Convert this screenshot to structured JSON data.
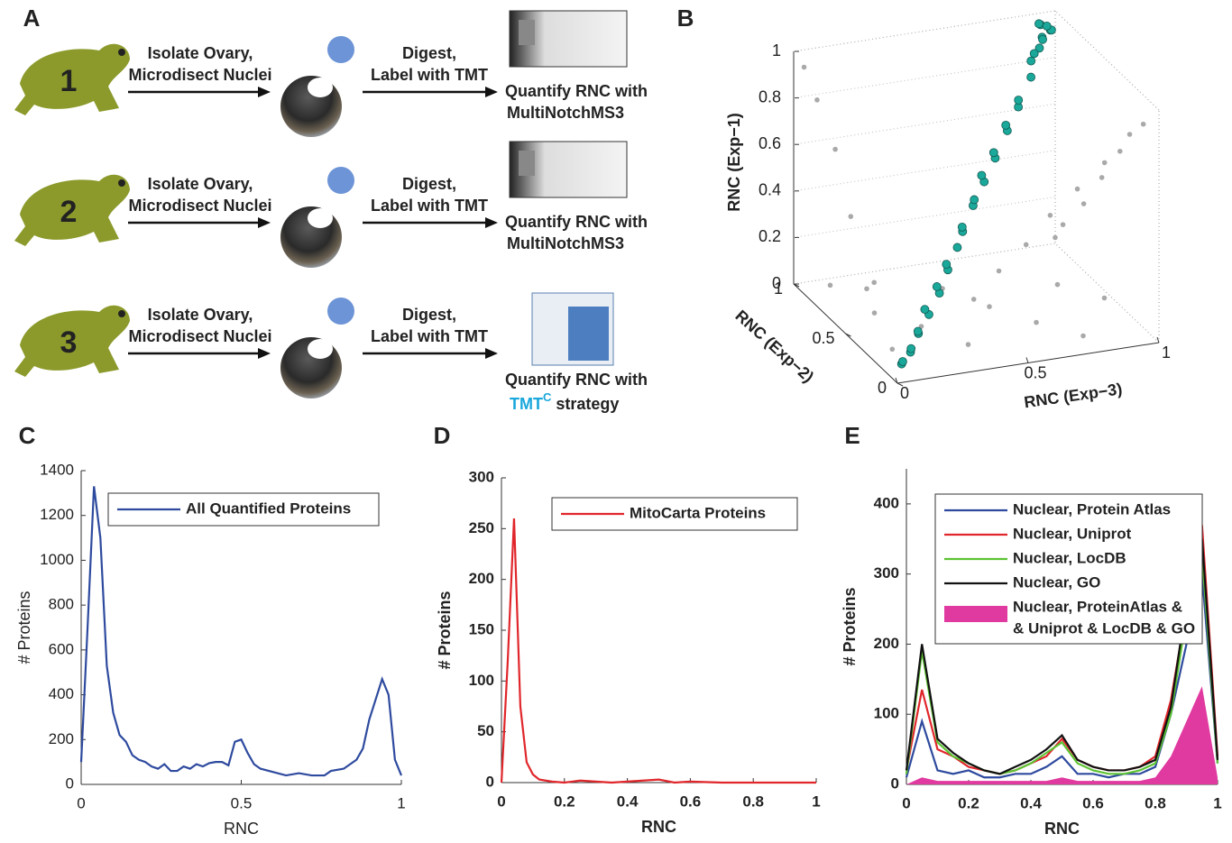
{
  "panel_labels": [
    "A",
    "B",
    "C",
    "D",
    "E"
  ],
  "workflow": {
    "rows": [
      {
        "number": "1",
        "step1": [
          "Isolate Ovary,",
          "Microdisect Nuclei"
        ],
        "step2": [
          "Digest,",
          "Label with TMT"
        ],
        "step3": "Quantify RNC with",
        "method": "MultiNotchMS3"
      },
      {
        "number": "2",
        "step1": [
          "Isolate Ovary,",
          "Microdisect Nuclei"
        ],
        "step2": [
          "Digest,",
          "Label with TMT"
        ],
        "step3": "Quantify RNC with",
        "method": "MultiNotchMS3"
      },
      {
        "number": "3",
        "step1": [
          "Isolate Ovary,",
          "Microdisect Nuclei"
        ],
        "step2": [
          "Digest,",
          "Label with TMT"
        ],
        "step3": "Quantify RNC with",
        "method": "TMT",
        "method_sup": "C",
        "method_suffix": "strategy"
      }
    ]
  },
  "chart_data": [
    {
      "type": "scatter3d",
      "xlabel": "RNC (Exp−3)",
      "ylabel": "RNC (Exp−2)",
      "zlabel": "RNC (Exp−1)",
      "xlim": [
        0,
        1
      ],
      "ylim": [
        0,
        1
      ],
      "zlim": [
        0,
        1
      ],
      "xticks": [
        0,
        0.5,
        1
      ],
      "yticks": [
        0,
        0.5,
        1
      ],
      "zticks": [
        0,
        0.2,
        0.4,
        0.6,
        0.8,
        1
      ],
      "series": [
        {
          "color": "#a9a9ab",
          "x": [
            0.02,
            0.03,
            0.02,
            0.04,
            0.03,
            0.02,
            0.98,
            0.97,
            0.98,
            0.99,
            0.97,
            0.98,
            0.3,
            0.4,
            0.5,
            0.6,
            0.7,
            0.8,
            0.9,
            0.1,
            0.2,
            0.15,
            0.25,
            0.35,
            0.45,
            0.55,
            0.65,
            0.75,
            0.85,
            0.95
          ],
          "y": [
            0.1,
            0.3,
            0.5,
            0.7,
            0.85,
            0.95,
            0.1,
            0.3,
            0.5,
            0.7,
            0.85,
            0.95,
            0.02,
            0.03,
            0.02,
            0.04,
            0.03,
            0.02,
            0.03,
            0.9,
            0.8,
            0.6,
            0.4,
            0.2,
            0.7,
            0.5,
            0.3,
            0.1,
            0.6,
            0.4
          ],
          "z": [
            0.1,
            0.3,
            0.5,
            0.7,
            0.85,
            0.95,
            0.9,
            0.7,
            0.5,
            0.3,
            0.15,
            0.05,
            0.3,
            0.4,
            0.5,
            0.6,
            0.7,
            0.8,
            0.9,
            0.02,
            0.03,
            0.02,
            0.03,
            0.02,
            0.03,
            0.02,
            0.02,
            0.03,
            0.02,
            0.03
          ]
        },
        {
          "color": "#1aa89a",
          "x": [
            0.04,
            0.07,
            0.1,
            0.06,
            0.12,
            0.15,
            0.18,
            0.2,
            0.24,
            0.27,
            0.3,
            0.33,
            0.36,
            0.4,
            0.43,
            0.46,
            0.5,
            0.53,
            0.56,
            0.6,
            0.63,
            0.67,
            0.7,
            0.74,
            0.78,
            0.82,
            0.86,
            0.9,
            0.93,
            0.95,
            0.97,
            0.92,
            0.88,
            0.96,
            0.91,
            0.94
          ],
          "y": [
            0.06,
            0.05,
            0.12,
            0.1,
            0.1,
            0.18,
            0.15,
            0.24,
            0.2,
            0.3,
            0.27,
            0.36,
            0.33,
            0.38,
            0.46,
            0.43,
            0.52,
            0.5,
            0.6,
            0.57,
            0.66,
            0.63,
            0.72,
            0.7,
            0.8,
            0.78,
            0.88,
            0.9,
            0.95,
            0.92,
            0.96,
            0.94,
            0.9,
            0.98,
            0.93,
            0.97
          ],
          "z": [
            0.05,
            0.1,
            0.08,
            0.04,
            0.15,
            0.12,
            0.2,
            0.18,
            0.26,
            0.24,
            0.32,
            0.3,
            0.38,
            0.42,
            0.4,
            0.5,
            0.48,
            0.56,
            0.54,
            0.62,
            0.6,
            0.7,
            0.68,
            0.76,
            0.74,
            0.84,
            0.86,
            0.9,
            0.92,
            0.96,
            0.94,
            0.98,
            0.88,
            0.95,
            0.99,
            0.9
          ]
        }
      ]
    },
    {
      "type": "line",
      "xlabel": "RNC",
      "ylabel": "# Proteins",
      "xlim": [
        0,
        1
      ],
      "ylim": [
        0,
        1400
      ],
      "xticks": [
        0,
        0.5,
        1
      ],
      "yticks": [
        0,
        200,
        400,
        600,
        800,
        1000,
        1200,
        1400
      ],
      "x": [
        0,
        0.02,
        0.04,
        0.06,
        0.08,
        0.1,
        0.12,
        0.14,
        0.16,
        0.18,
        0.2,
        0.22,
        0.24,
        0.26,
        0.28,
        0.3,
        0.32,
        0.34,
        0.36,
        0.38,
        0.4,
        0.42,
        0.44,
        0.46,
        0.48,
        0.5,
        0.52,
        0.54,
        0.56,
        0.6,
        0.64,
        0.68,
        0.72,
        0.76,
        0.78,
        0.82,
        0.86,
        0.88,
        0.9,
        0.92,
        0.94,
        0.96,
        0.98,
        1
      ],
      "series": [
        {
          "name": "All Quantified Proteins",
          "color": "#2e4a9e",
          "values": [
            100,
            700,
            1330,
            1100,
            530,
            320,
            220,
            190,
            130,
            110,
            100,
            80,
            70,
            90,
            60,
            60,
            80,
            70,
            90,
            80,
            95,
            100,
            100,
            85,
            190,
            200,
            140,
            90,
            70,
            55,
            40,
            50,
            40,
            40,
            60,
            70,
            110,
            160,
            290,
            380,
            470,
            400,
            110,
            40
          ]
        }
      ]
    },
    {
      "type": "line",
      "xlabel": "RNC",
      "ylabel": "# Proteins",
      "xlim": [
        0,
        1
      ],
      "ylim": [
        0,
        300
      ],
      "xticks": [
        0,
        0.2,
        0.4,
        0.6,
        0.8,
        1
      ],
      "yticks": [
        0,
        50,
        100,
        150,
        200,
        250,
        300
      ],
      "x": [
        0,
        0.02,
        0.04,
        0.06,
        0.08,
        0.1,
        0.12,
        0.14,
        0.16,
        0.2,
        0.25,
        0.3,
        0.35,
        0.4,
        0.45,
        0.5,
        0.55,
        0.6,
        0.7,
        0.8,
        0.9,
        1
      ],
      "series": [
        {
          "name": "MitoCarta Proteins",
          "color": "#e0262b",
          "values": [
            0,
            120,
            260,
            75,
            20,
            8,
            3,
            2,
            1,
            0,
            2,
            1,
            0,
            1,
            2,
            3,
            0,
            1,
            0,
            0,
            0,
            0
          ]
        }
      ]
    },
    {
      "type": "line",
      "xlabel": "RNC",
      "ylabel": "# Proteins",
      "xlim": [
        0,
        1
      ],
      "ylim": [
        0,
        450
      ],
      "xticks": [
        0,
        0.2,
        0.4,
        0.6,
        0.8,
        1
      ],
      "yticks": [
        0,
        100,
        200,
        300,
        400
      ],
      "x": [
        0,
        0.05,
        0.1,
        0.15,
        0.2,
        0.25,
        0.3,
        0.35,
        0.4,
        0.45,
        0.5,
        0.55,
        0.6,
        0.65,
        0.7,
        0.75,
        0.8,
        0.85,
        0.9,
        0.95,
        1
      ],
      "series": [
        {
          "name": "Nuclear, Protein Atlas",
          "color": "#2e4a9e",
          "values": [
            10,
            90,
            20,
            15,
            20,
            10,
            10,
            15,
            15,
            25,
            40,
            15,
            15,
            10,
            15,
            15,
            25,
            100,
            200,
            300,
            30
          ]
        },
        {
          "name": "Nuclear, Uniprot",
          "color": "#e0262b",
          "values": [
            20,
            135,
            50,
            40,
            25,
            20,
            15,
            20,
            30,
            40,
            65,
            35,
            25,
            20,
            20,
            25,
            40,
            120,
            250,
            370,
            40
          ]
        },
        {
          "name": "Nuclear, LocDB",
          "color": "#5cc232",
          "values": [
            15,
            190,
            60,
            40,
            30,
            20,
            15,
            20,
            30,
            45,
            60,
            30,
            20,
            15,
            15,
            20,
            30,
            100,
            240,
            330,
            30
          ]
        },
        {
          "name": "Nuclear, GO",
          "color": "#111111",
          "values": [
            20,
            200,
            65,
            45,
            30,
            20,
            15,
            25,
            35,
            50,
            70,
            35,
            25,
            20,
            20,
            25,
            35,
            110,
            260,
            350,
            35
          ]
        },
        {
          "name": [
            "Nuclear, ProteinAtlas &",
            "& Uniprot & LocDB & GO"
          ],
          "color": "#e0399f",
          "style": "area",
          "values": [
            0,
            10,
            5,
            5,
            5,
            5,
            5,
            5,
            5,
            5,
            10,
            5,
            5,
            5,
            5,
            5,
            10,
            40,
            90,
            140,
            10
          ]
        }
      ]
    }
  ]
}
